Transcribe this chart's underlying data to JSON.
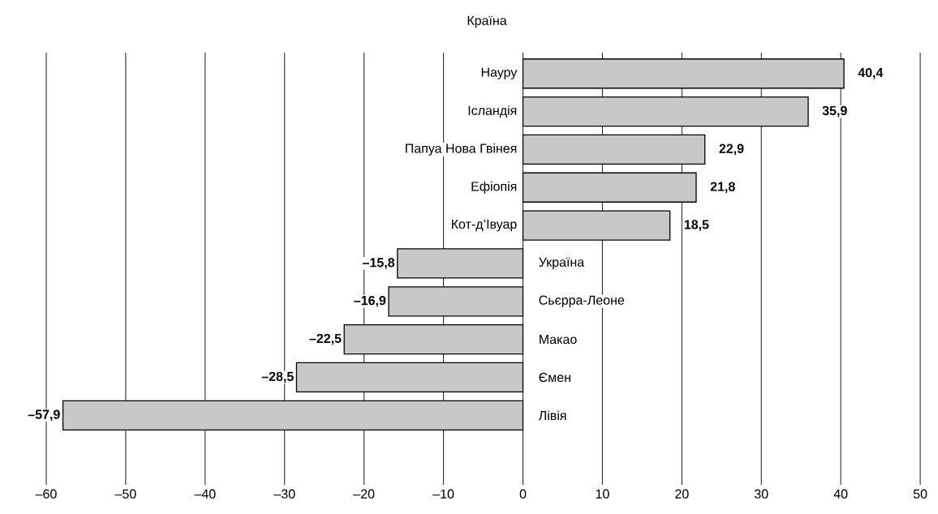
{
  "chart_data": {
    "type": "bar",
    "orientation": "horizontal",
    "title": "Країна",
    "categories": [
      "Науру",
      "Ісландія",
      "Папуа Нова Гвінея",
      "Ефіопія",
      "Кот-д’Івуар",
      "Україна",
      "Сьєрра-Леоне",
      "Макао",
      "Ємен",
      "Лівія"
    ],
    "values": [
      40.4,
      35.9,
      22.9,
      21.8,
      18.5,
      -15.8,
      -16.9,
      -22.5,
      -28.5,
      -57.9
    ],
    "value_labels": [
      "40,4",
      "35,9",
      "22,9",
      "21,8",
      "18,5",
      "–15,8",
      "–16,9",
      "–22,5",
      "–28,5",
      "–57,9"
    ],
    "color": "#c8c8c8",
    "xlim": [
      -60,
      50
    ],
    "xticks": [
      {
        "value": -60,
        "label": "–60"
      },
      {
        "value": -50,
        "label": "–50"
      },
      {
        "value": -40,
        "label": "–40"
      },
      {
        "value": -30,
        "label": "–30"
      },
      {
        "value": -20,
        "label": "–20"
      },
      {
        "value": -10,
        "label": "–10"
      },
      0,
      10,
      20,
      30,
      40,
      50
    ],
    "grid": "x"
  }
}
